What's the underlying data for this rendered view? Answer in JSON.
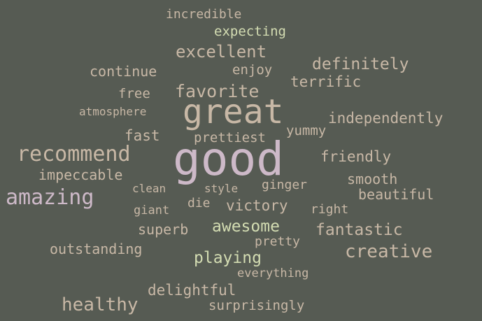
{
  "palette": {
    "background": "#565b53",
    "tan": "#c8b8a6",
    "pink": "#cdb9c8",
    "green": "#d3dcb2",
    "grey": "#c4c0b8"
  },
  "words": {
    "incredible": "incredible",
    "expecting": "expecting",
    "excellent": "excellent",
    "enjoy": "enjoy",
    "definitely": "definitely",
    "continue": "continue",
    "terrific": "terrific",
    "free": "free",
    "favorite": "favorite",
    "great": "great",
    "atmosphere": "atmosphere",
    "independently": "independently",
    "fast": "fast",
    "prettiest": "prettiest",
    "yummy": "yummy",
    "recommend": "recommend",
    "good": "good",
    "friendly": "friendly",
    "impeccable": "impeccable",
    "smooth": "smooth",
    "clean": "clean",
    "style": "style",
    "ginger": "ginger",
    "beautiful": "beautiful",
    "amazing": "amazing",
    "giant": "giant",
    "die": "die",
    "victory": "victory",
    "right": "right",
    "superb": "superb",
    "awesome": "awesome",
    "fantastic": "fantastic",
    "outstanding": "outstanding",
    "pretty": "pretty",
    "creative": "creative",
    "playing": "playing",
    "everything": "everything",
    "delightful": "delightful",
    "healthy": "healthy",
    "surprisingly": "surprisingly"
  }
}
